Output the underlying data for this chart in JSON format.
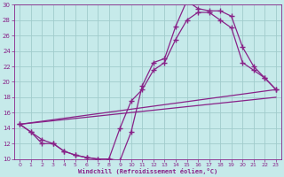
{
  "xlabel": "Windchill (Refroidissement éolien,°C)",
  "bg_color": "#c6eaea",
  "line_color": "#882288",
  "grid_color": "#a0cccc",
  "xlim": [
    -0.5,
    23.5
  ],
  "ylim": [
    10,
    30
  ],
  "yticks": [
    10,
    12,
    14,
    16,
    18,
    20,
    22,
    24,
    26,
    28,
    30
  ],
  "xticks": [
    0,
    1,
    2,
    3,
    4,
    5,
    6,
    7,
    8,
    9,
    10,
    11,
    12,
    13,
    14,
    15,
    16,
    17,
    18,
    19,
    20,
    21,
    22,
    23
  ],
  "line1_x": [
    0,
    1,
    2,
    3,
    4,
    5,
    6,
    7,
    8,
    9,
    10,
    11,
    12,
    13,
    14,
    15,
    16,
    17,
    18,
    19,
    20,
    21,
    22,
    23
  ],
  "line1_y": [
    14.5,
    13.5,
    12.5,
    12.0,
    11.0,
    10.5,
    10.2,
    10.0,
    10.0,
    9.8,
    13.5,
    19.5,
    22.5,
    23.0,
    27.2,
    30.5,
    29.5,
    29.2,
    29.2,
    28.5,
    24.5,
    22.0,
    20.5,
    19.0
  ],
  "line2_x": [
    0,
    1,
    2,
    3,
    4,
    5,
    6,
    7,
    8,
    9,
    10,
    11,
    12,
    13,
    14,
    15,
    16,
    17,
    18,
    19,
    20,
    21,
    22,
    23
  ],
  "line2_y": [
    14.5,
    13.5,
    12.0,
    12.0,
    11.0,
    10.5,
    10.2,
    10.0,
    10.0,
    14.0,
    17.5,
    19.0,
    21.5,
    22.5,
    25.5,
    28.0,
    29.0,
    29.0,
    28.0,
    27.0,
    22.5,
    21.5,
    20.5,
    19.0
  ],
  "line3_x": [
    0,
    23
  ],
  "line3_y": [
    14.5,
    19.0
  ],
  "line4_x": [
    0,
    23
  ],
  "line4_y": [
    14.5,
    19.0
  ]
}
